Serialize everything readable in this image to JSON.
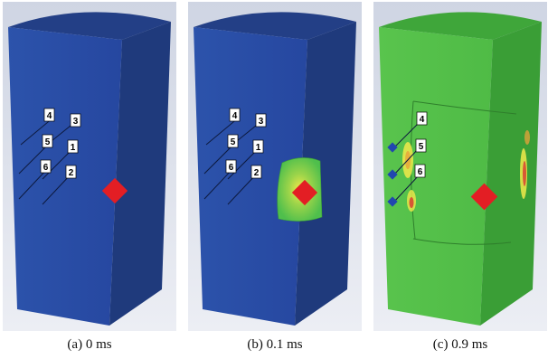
{
  "panels": [
    {
      "caption": "(a) 0 ms",
      "time": "0 ms",
      "block_color": "#2a4fa3",
      "top_color": "#233f86",
      "side_color": "#1f3a7c",
      "labels": [
        "4",
        "3",
        "5",
        "1",
        "6",
        "2"
      ]
    },
    {
      "caption": "(b) 0.1 ms",
      "time": "0.1 ms",
      "block_color": "#2a4fa3",
      "top_color": "#233f86",
      "side_color": "#1f3a7c",
      "labels": [
        "4",
        "3",
        "5",
        "1",
        "6",
        "2"
      ]
    },
    {
      "caption": "(c) 0.9 ms",
      "time": "0.9 ms",
      "block_color": "#55c24a",
      "top_color": "#3fa63a",
      "side_color": "#3a9e36",
      "labels": [
        "4",
        "5",
        "6"
      ]
    }
  ],
  "colors": {
    "background_top": "#d8dde8",
    "background_bottom": "#eef0f5",
    "impact_marker": "#e31e24",
    "gauge_marker": "#2146b0"
  }
}
